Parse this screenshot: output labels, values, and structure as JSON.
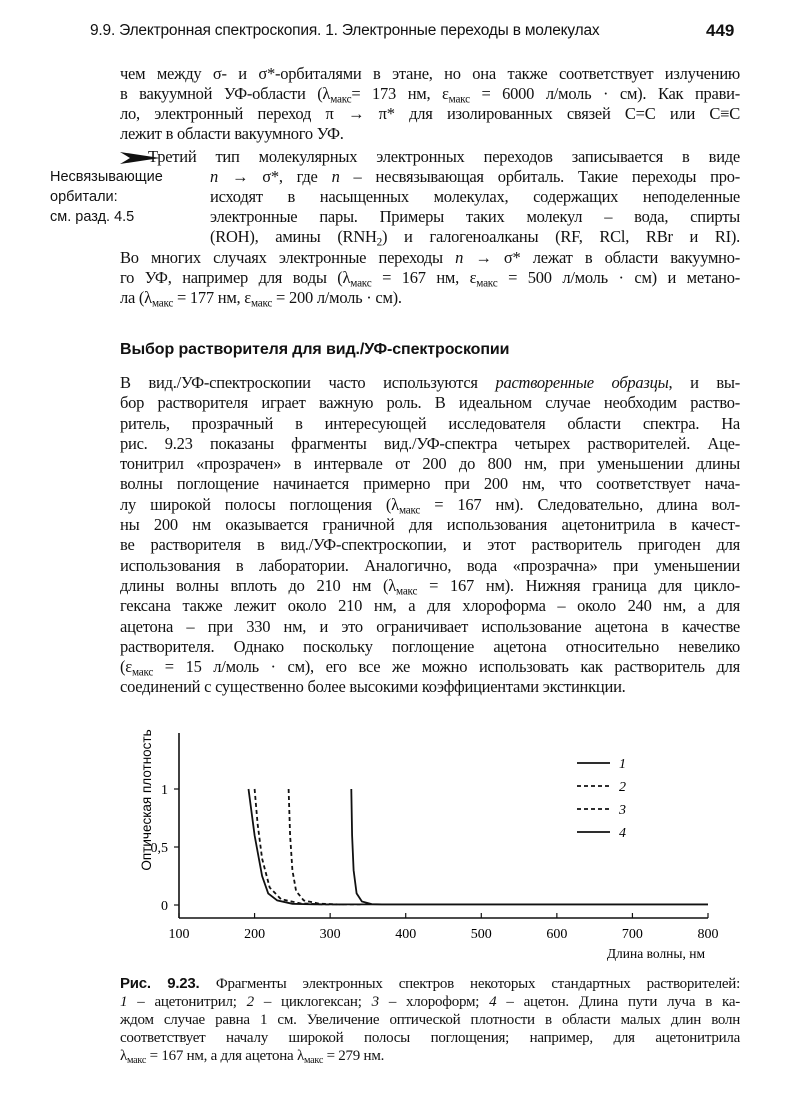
{
  "header": {
    "running_title": "9.9. Электронная спектроскопия. 1. Электронные переходы в молекулах",
    "page_number": "449"
  },
  "para1": [
    [
      "чем между σ- и σ*-орбиталями в этане, но она также соответствует излучению"
    ],
    [
      "в вакуумной УФ-области (λ",
      {
        "s": "макс"
      },
      "= 173 нм, ε",
      {
        "s": "макс"
      },
      " = 6000 л/моль · см). Как прави-"
    ],
    [
      "ло, электронный переход π → π* для изолированных связей C=C или C≡C"
    ],
    [
      "лежит в области вакуумного УФ."
    ]
  ],
  "margin_note": {
    "icon": "arrow-pointer-icon",
    "lines": [
      "Несвязывающие",
      "орбитали:",
      "см. разд. 4.5"
    ]
  },
  "para2a": [
    [
      "Третий тип молекулярных электронных переходов записывается в виде"
    ],
    [
      {
        "i": "n"
      },
      " → σ*, где ",
      {
        "i": "n"
      },
      " – несвязывающая орбиталь. Такие переходы про-"
    ],
    [
      "исходят в насыщенных молекулах, содержащих неподеленные"
    ],
    [
      "электронные пары. Примеры таких молекул – вода, спирты"
    ],
    [
      "(ROH), амины (RNH",
      {
        "s": "2"
      },
      ") и галогеноалканы (RF, RCl, RBr и RI)."
    ]
  ],
  "para2b": [
    [
      "Во многих случаях электронные переходы ",
      {
        "i": "n"
      },
      " → σ* лежат в области вакуумно-"
    ],
    [
      "го УФ, например для воды (λ",
      {
        "s": "макс"
      },
      " = 167 нм, ε",
      {
        "s": "макс"
      },
      " = 500 л/моль · см) и метано-"
    ],
    [
      "ла (λ",
      {
        "s": "макс"
      },
      " = 177 нм, ε",
      {
        "s": "макс"
      },
      " = 200 л/моль · см)."
    ]
  ],
  "section_heading": "Выбор растворителя для вид./УФ-спектроскопии",
  "para3": [
    [
      "В вид./УФ-спектроскопии часто используются ",
      {
        "i": "растворенные образцы"
      },
      ", и вы-"
    ],
    [
      "бор растворителя играет важную роль. В идеальном случае необходим раство-"
    ],
    [
      "ритель, прозрачный в интересующей исследователя области спектра. На"
    ],
    [
      "рис. 9.23 показаны фрагменты вид./УФ-спектра четырех растворителей. Аце-"
    ],
    [
      "тонитрил «прозрачен» в интервале от 200 до 800 нм, при уменьшении длины"
    ],
    [
      "волны поглощение начинается примерно при 200 нм, что соответствует нача-"
    ],
    [
      "лу широкой полосы поглощения (λ",
      {
        "s": "макс"
      },
      " = 167 нм). Следовательно, длина вол-"
    ],
    [
      "ны 200 нм оказывается граничной для использования ацетонитрила в качест-"
    ],
    [
      "ве растворителя в вид./УФ-спектроскопии, и этот растворитель пригоден для"
    ],
    [
      "использования в лаборатории. Аналогично, вода «прозрачна» при уменьшении"
    ],
    [
      "длины волны вплоть до 210 нм (λ",
      {
        "s": "макс"
      },
      " = 167 нм). Нижняя граница для цикло-"
    ],
    [
      "гексана также лежит около 210 нм, а для хлороформа – около 240 нм, а для"
    ],
    [
      "ацетона – при 330 нм, и это ограничивает использование ацетона в качестве"
    ],
    [
      "растворителя. Однако поскольку поглощение ацетона относительно невелико"
    ],
    [
      "(ε",
      {
        "s": "макс"
      },
      " = 15 л/моль · см), его все же можно использовать как растворитель для"
    ],
    [
      "соединений с существенно более высокими коэффициентами экстинкции."
    ]
  ],
  "caption": [
    [
      {
        "b": "Рис. 9.23. "
      },
      "Фрагменты электронных спектров некоторых стандартных растворителей:"
    ],
    [
      {
        "i": "1"
      },
      " – ацетонитрил; ",
      {
        "i": "2"
      },
      " – циклогексан; ",
      {
        "i": "3"
      },
      " – хлороформ; ",
      {
        "i": "4"
      },
      " – ацетон. Длина пути луча в ка-"
    ],
    [
      "ждом случае равна 1 см. Увеличение оптической плотности в области малых длин волн"
    ],
    [
      "соответствует началу широкой полосы поглощения; например, для ацетонитрила"
    ],
    [
      "λ",
      {
        "s": "макс"
      },
      " = 167 нм, а для ацетона λ",
      {
        "s": "макс"
      },
      " = 279 нм."
    ]
  ],
  "chart_data": {
    "type": "line",
    "title": "",
    "xlabel": "Длина волны, нм",
    "ylabel": "Оптическая плотность",
    "xlim": [
      100,
      800
    ],
    "ylim": [
      0,
      1.5
    ],
    "xticks": [
      "100",
      "200",
      "300",
      "400",
      "500",
      "600",
      "700",
      "800"
    ],
    "yticks": [
      {
        "v": 0,
        "label": "0"
      },
      {
        "v": 0.5,
        "label": "0,5"
      },
      {
        "v": 1,
        "label": "1"
      }
    ],
    "grid": false,
    "legend": "top-right",
    "series": [
      {
        "name": "1",
        "style": "solid",
        "x": [
          192,
          200,
          210,
          218,
          230,
          250,
          280,
          800
        ],
        "y": [
          1,
          0.6,
          0.25,
          0.1,
          0.04,
          0.01,
          0.005,
          0.005
        ]
      },
      {
        "name": "2",
        "style": "dashed",
        "x": [
          200,
          204,
          210,
          220,
          235,
          260,
          290,
          320
        ],
        "y": [
          1,
          0.7,
          0.4,
          0.15,
          0.05,
          0.015,
          0.005,
          0.005
        ]
      },
      {
        "name": "3",
        "style": "dashed",
        "x": [
          245,
          247,
          250,
          255,
          265,
          285,
          310,
          340
        ],
        "y": [
          1,
          0.6,
          0.3,
          0.12,
          0.04,
          0.012,
          0.005,
          0.005
        ]
      },
      {
        "name": "4",
        "style": "solid",
        "x": [
          328,
          329,
          331,
          335,
          342,
          355,
          370,
          800
        ],
        "y": [
          1,
          0.6,
          0.3,
          0.1,
          0.03,
          0.008,
          0.005,
          0.005
        ]
      }
    ]
  }
}
